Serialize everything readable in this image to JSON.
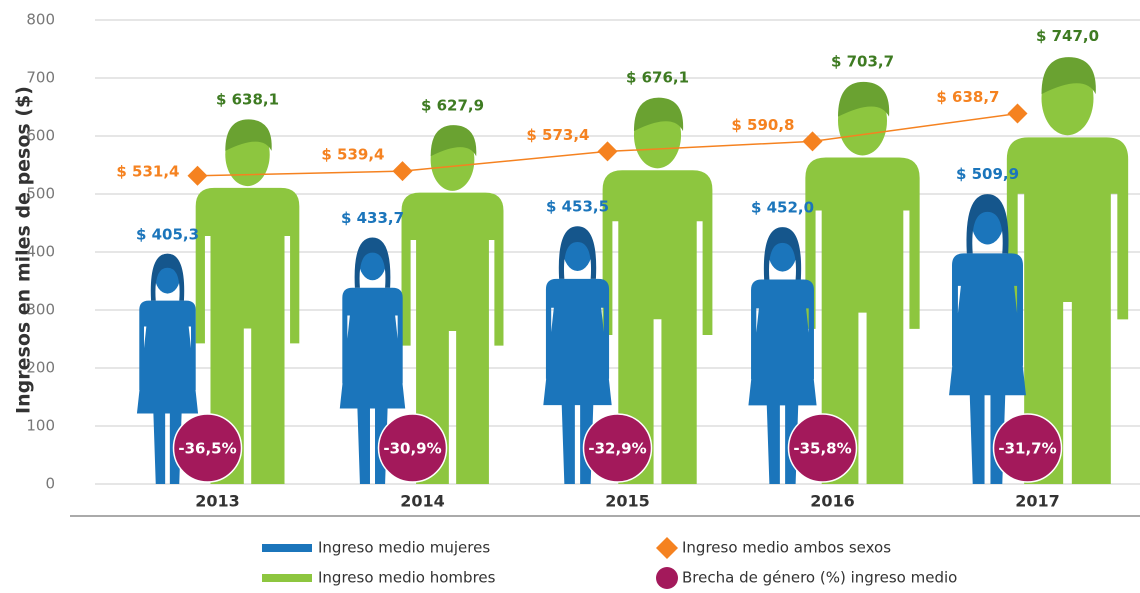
{
  "chart_data": {
    "type": "pictograph",
    "y_label": "Ingresos en miles de pesos ($)",
    "categories": [
      "2013",
      "2014",
      "2015",
      "2016",
      "2017"
    ],
    "ylim": [
      0,
      800
    ],
    "yticks": [
      0,
      100,
      200,
      300,
      400,
      500,
      600,
      700,
      800
    ],
    "grid": true,
    "legend": "bottom",
    "series": [
      {
        "name": "Ingreso medio mujeres",
        "color": "#1b75bb",
        "kind": "figure-woman",
        "values": [
          405.3,
          433.7,
          453.5,
          452.0,
          509.9
        ],
        "value_labels": [
          "$ 405,3",
          "$ 433,7",
          "$ 453,5",
          "$ 452,0",
          "$ 509,9"
        ]
      },
      {
        "name": "Ingreso medio hombres",
        "color": "#8dc63f",
        "kind": "figure-man",
        "values": [
          638.1,
          627.9,
          676.1,
          703.7,
          747.0
        ],
        "value_labels": [
          "$ 638,1",
          "$ 627,9",
          "$ 676,1",
          "$ 703,7",
          "$ 747,0"
        ]
      },
      {
        "name": "Ingreso medio ambos sexos",
        "color": "#f58220",
        "kind": "line",
        "values": [
          531.4,
          539.4,
          573.4,
          590.8,
          638.7
        ],
        "value_labels": [
          "$ 531,4",
          "$ 539,4",
          "$ 573,4",
          "$ 590,8",
          "$ 638,7"
        ]
      },
      {
        "name": "Brecha de género (%) ingreso medio",
        "color": "#a3195b",
        "kind": "badge",
        "values": [
          -36.5,
          -30.9,
          -32.9,
          -35.8,
          -31.7
        ],
        "value_labels": [
          "-36,5%",
          "-30,9%",
          "-32,9%",
          "-35,8%",
          "-31,7%"
        ]
      }
    ]
  }
}
